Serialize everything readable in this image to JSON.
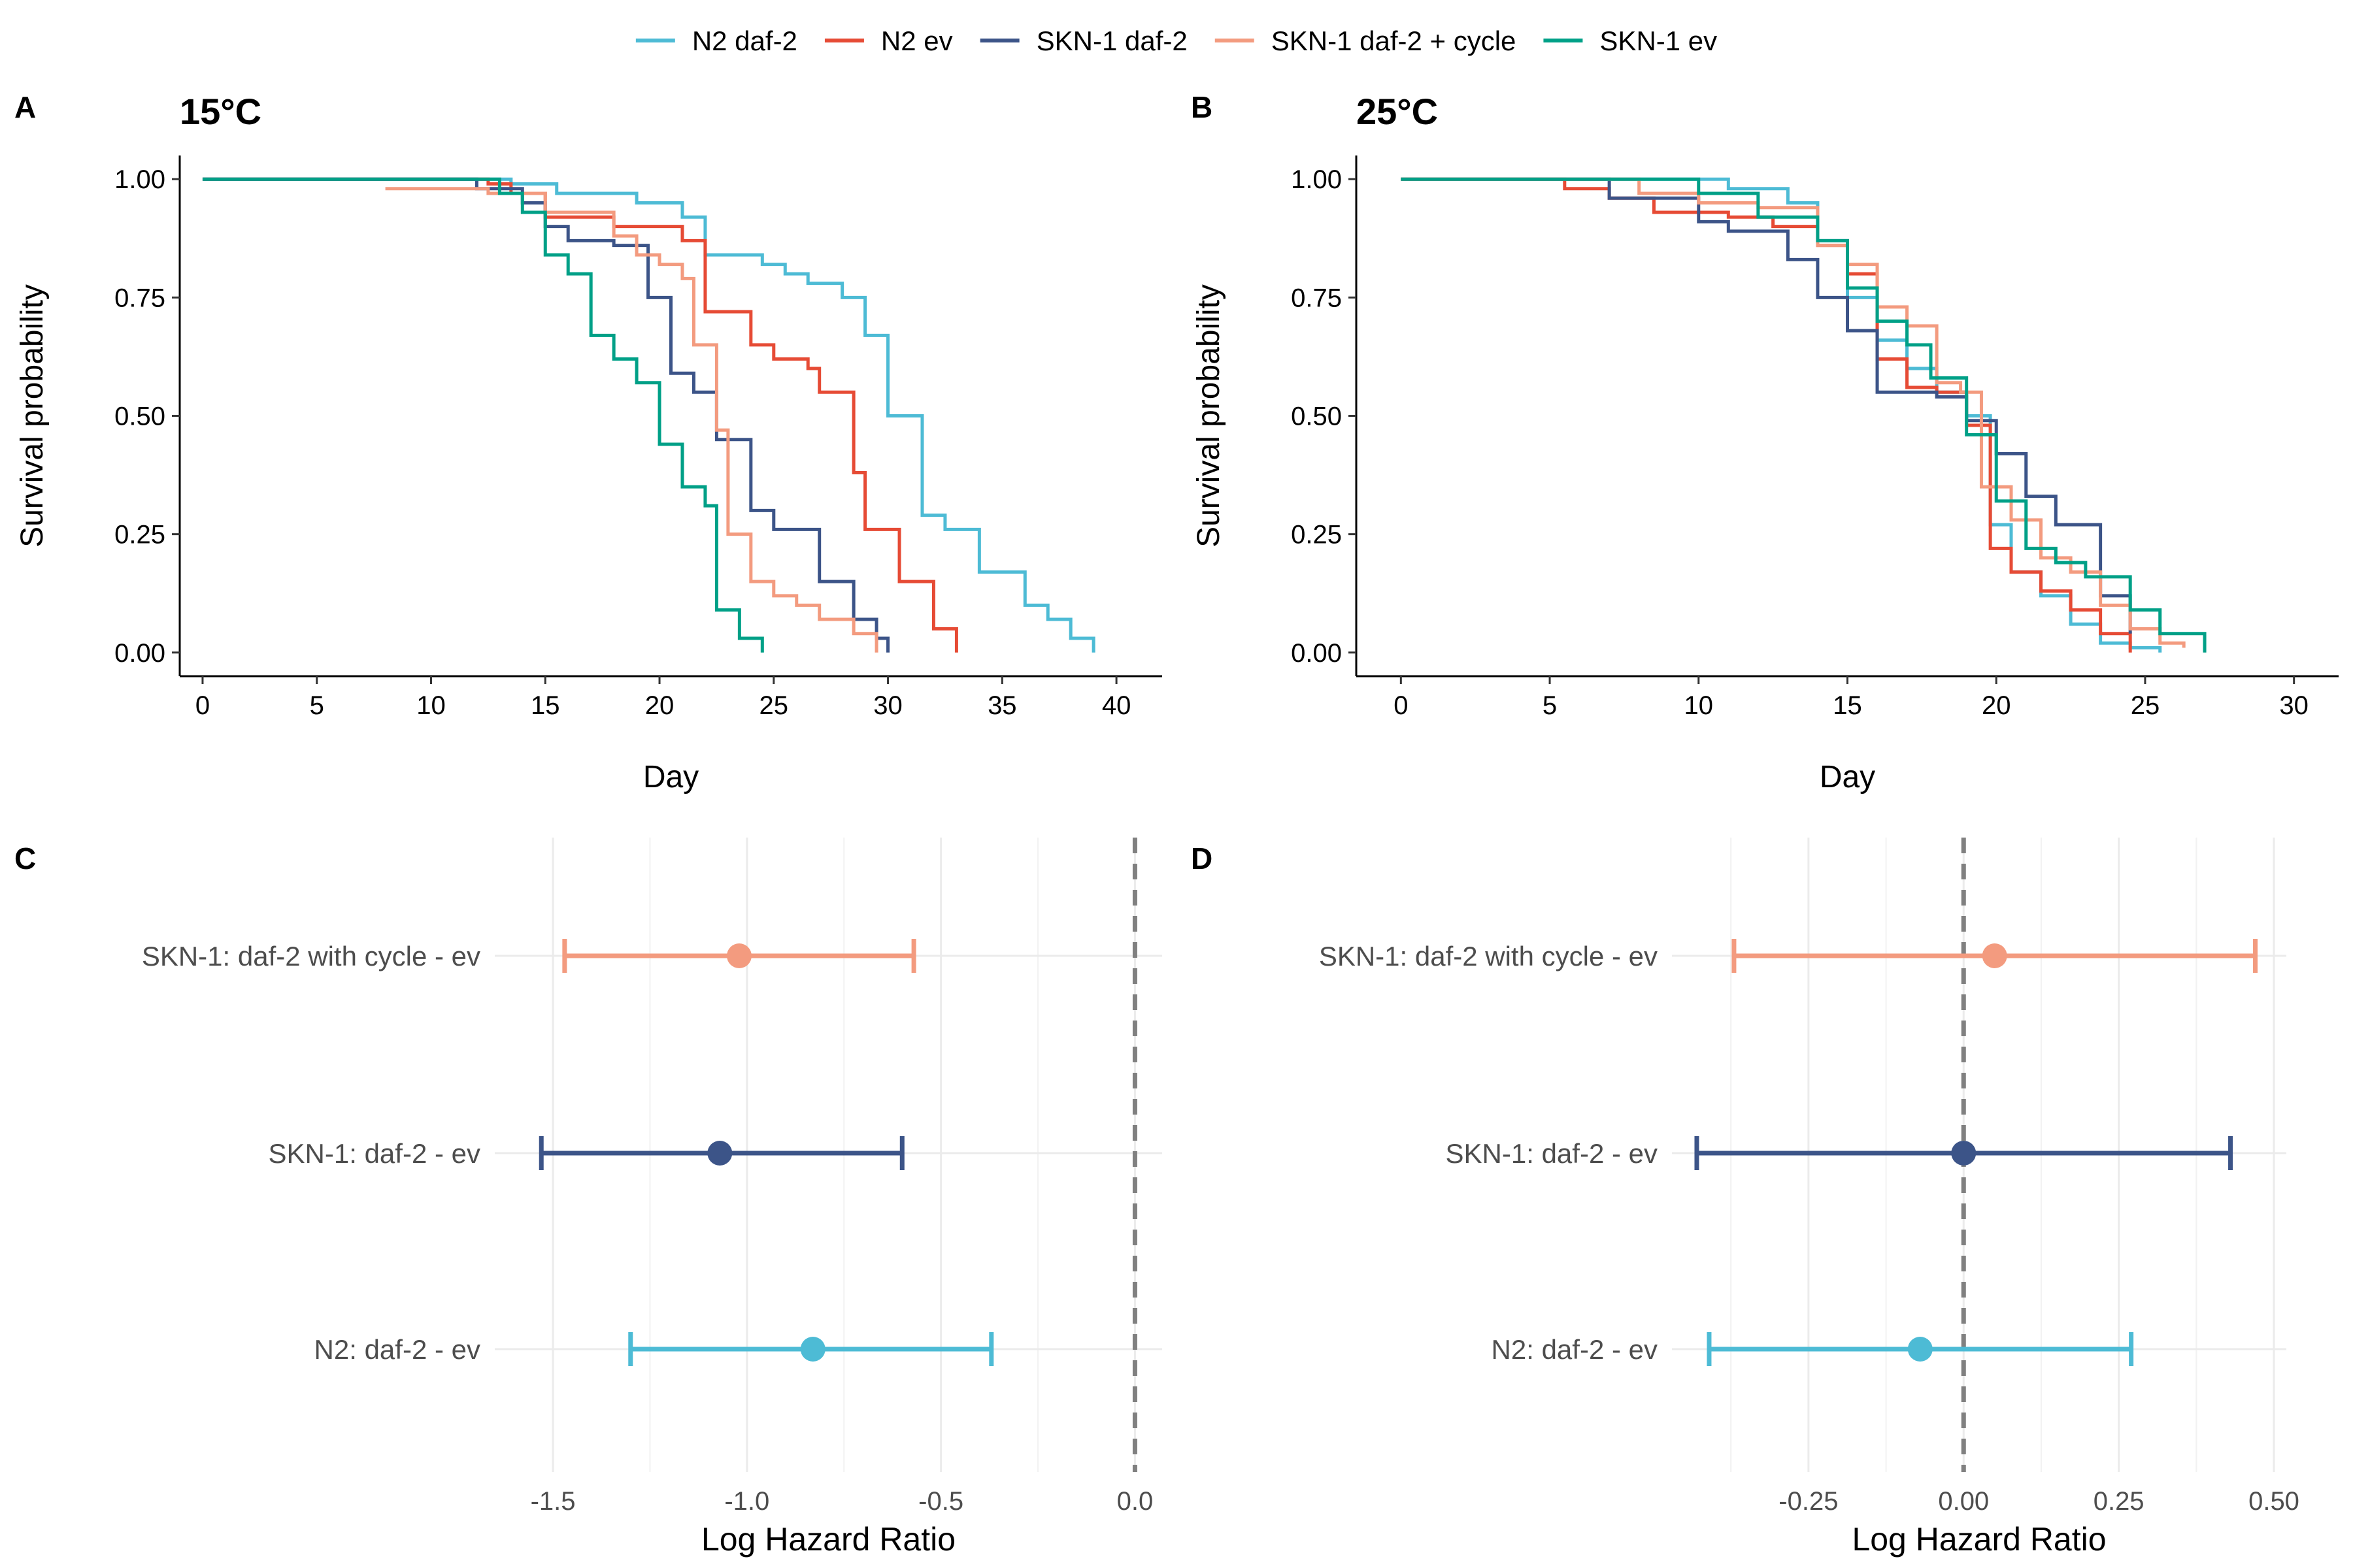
{
  "legend": {
    "items": [
      {
        "label": "N2 daf-2",
        "color": "#4DBBD5"
      },
      {
        "label": "N2 ev",
        "color": "#E64B35"
      },
      {
        "label": "SKN-1 daf-2",
        "color": "#3C5488"
      },
      {
        "label": "SKN-1 daf-2 + cycle",
        "color": "#F39B7F"
      },
      {
        "label": "SKN-1 ev",
        "color": "#00A087"
      }
    ]
  },
  "panels": {
    "A": {
      "letter": "A",
      "title": "15°C"
    },
    "B": {
      "letter": "B",
      "title": "25°C"
    },
    "C": {
      "letter": "C"
    },
    "D": {
      "letter": "D"
    }
  },
  "colors": {
    "n2_daf2": "#4DBBD5",
    "n2_ev": "#E64B35",
    "skn1_daf2": "#3C5488",
    "skn1_daf2_cycle": "#F39B7F",
    "skn1_ev": "#00A087",
    "reference_line": "#808080",
    "grid": "#EBEBEB"
  },
  "chart_data": [
    {
      "panel": "A",
      "type": "line",
      "title": "15°C",
      "xlabel": "Day",
      "ylabel": "Survival probability",
      "xlim": [
        -1,
        42
      ],
      "ylim": [
        -0.05,
        1.05
      ],
      "xticks": [
        0,
        5,
        10,
        15,
        20,
        25,
        30,
        35,
        40
      ],
      "xtick_labels": [
        "0",
        "5",
        "10",
        "15",
        "20",
        "25",
        "30",
        "35",
        "40"
      ],
      "yticks": [
        0,
        0.25,
        0.5,
        0.75,
        1
      ],
      "ytick_labels": [
        "0.00",
        "0.25",
        "0.50",
        "0.75",
        "1.00"
      ],
      "grid": false,
      "step": true,
      "series": [
        {
          "name": "N2 daf-2",
          "color": "#4DBBD5",
          "x": [
            0,
            13.5,
            15.5,
            19,
            21,
            22,
            24.5,
            25.5,
            26.5,
            28,
            29,
            30,
            31.5,
            32.5,
            34,
            36,
            37,
            38,
            39
          ],
          "y": [
            1,
            0.99,
            0.97,
            0.95,
            0.92,
            0.84,
            0.82,
            0.8,
            0.78,
            0.75,
            0.67,
            0.5,
            0.29,
            0.26,
            0.17,
            0.1,
            0.07,
            0.03,
            0
          ]
        },
        {
          "name": "N2 ev",
          "color": "#E64B35",
          "x": [
            0,
            12.5,
            13.5,
            15,
            18,
            21,
            22,
            24,
            25,
            26.5,
            27,
            28.5,
            29,
            30.5,
            32,
            33
          ],
          "y": [
            1,
            0.99,
            0.97,
            0.92,
            0.9,
            0.87,
            0.72,
            0.65,
            0.62,
            0.6,
            0.55,
            0.38,
            0.26,
            0.15,
            0.05,
            0
          ]
        },
        {
          "name": "SKN-1 daf-2",
          "color": "#3C5488",
          "x": [
            0,
            12,
            14,
            15,
            16,
            18,
            19.5,
            20.5,
            21.5,
            22.5,
            24,
            25,
            26,
            27,
            28.5,
            29.5,
            30
          ],
          "y": [
            1,
            0.98,
            0.95,
            0.9,
            0.87,
            0.86,
            0.75,
            0.59,
            0.55,
            0.45,
            0.3,
            0.26,
            0.26,
            0.15,
            0.07,
            0.03,
            0
          ]
        },
        {
          "name": "SKN-1 daf-2 + cycle",
          "color": "#F39B7F",
          "x": [
            8,
            12.5,
            15,
            18,
            19,
            20,
            21,
            21.5,
            22.5,
            23,
            24,
            25,
            26,
            27,
            28.5,
            29.5
          ],
          "y": [
            0.98,
            0.97,
            0.93,
            0.88,
            0.84,
            0.82,
            0.79,
            0.65,
            0.47,
            0.25,
            0.15,
            0.12,
            0.1,
            0.07,
            0.04,
            0
          ]
        },
        {
          "name": "SKN-1 ev",
          "color": "#00A087",
          "x": [
            0,
            13,
            14,
            15,
            16,
            17,
            18,
            19,
            20,
            21,
            22,
            22.5,
            23.5,
            24.5
          ],
          "y": [
            1,
            0.97,
            0.93,
            0.84,
            0.8,
            0.67,
            0.62,
            0.57,
            0.44,
            0.35,
            0.31,
            0.09,
            0.03,
            0
          ]
        }
      ]
    },
    {
      "panel": "B",
      "type": "line",
      "title": "25°C",
      "xlabel": "Day",
      "ylabel": "Survival probability",
      "xlim": [
        -1.5,
        31.5
      ],
      "ylim": [
        -0.05,
        1.05
      ],
      "xticks": [
        0,
        5,
        10,
        15,
        20,
        25,
        30
      ],
      "xtick_labels": [
        "0",
        "5",
        "10",
        "15",
        "20",
        "25",
        "30"
      ],
      "yticks": [
        0,
        0.25,
        0.5,
        0.75,
        1
      ],
      "ytick_labels": [
        "0.00",
        "0.25",
        "0.50",
        "0.75",
        "1.00"
      ],
      "grid": false,
      "step": true,
      "series": [
        {
          "name": "N2 daf-2",
          "color": "#4DBBD5",
          "x": [
            0,
            11,
            13,
            14,
            15,
            16,
            17,
            18,
            19,
            19.8,
            20.5,
            21.5,
            22.5,
            23.5,
            24.5,
            25.5
          ],
          "y": [
            1,
            0.98,
            0.95,
            0.87,
            0.75,
            0.66,
            0.6,
            0.55,
            0.5,
            0.27,
            0.17,
            0.12,
            0.06,
            0.02,
            0.01,
            0
          ]
        },
        {
          "name": "N2 ev",
          "color": "#E64B35",
          "x": [
            0,
            5.5,
            7,
            8.5,
            11,
            12.5,
            14,
            15,
            16,
            17,
            18,
            19,
            19.8,
            20.5,
            21.5,
            22.5,
            23.5,
            24.5
          ],
          "y": [
            1,
            0.98,
            0.96,
            0.93,
            0.92,
            0.9,
            0.86,
            0.8,
            0.62,
            0.56,
            0.55,
            0.48,
            0.22,
            0.17,
            0.13,
            0.09,
            0.04,
            0
          ]
        },
        {
          "name": "SKN-1 daf-2",
          "color": "#3C5488",
          "x": [
            0,
            7,
            10,
            11,
            13,
            14,
            15,
            16,
            17,
            18,
            19,
            20,
            21,
            22,
            23.5,
            24.5
          ],
          "y": [
            1,
            0.96,
            0.91,
            0.89,
            0.83,
            0.75,
            0.68,
            0.55,
            0.55,
            0.54,
            0.49,
            0.42,
            0.33,
            0.27,
            0.12,
            0.04
          ]
        },
        {
          "name": "SKN-1 daf-2 + cycle",
          "color": "#F39B7F",
          "x": [
            0,
            8,
            10,
            12,
            14,
            15,
            16,
            17,
            18,
            18.8,
            19.5,
            20.5,
            21.5,
            22.5,
            23.5,
            24.5,
            25.5,
            26.3
          ],
          "y": [
            1,
            0.97,
            0.95,
            0.94,
            0.86,
            0.82,
            0.73,
            0.69,
            0.57,
            0.55,
            0.35,
            0.28,
            0.2,
            0.17,
            0.1,
            0.05,
            0.02,
            0.01
          ]
        },
        {
          "name": "SKN-1 ev",
          "color": "#00A087",
          "x": [
            0,
            10,
            12,
            14,
            15,
            16,
            17,
            17.8,
            19,
            20,
            21,
            22,
            23,
            24.5,
            25.5,
            27
          ],
          "y": [
            1,
            0.97,
            0.92,
            0.87,
            0.77,
            0.7,
            0.65,
            0.58,
            0.46,
            0.32,
            0.22,
            0.19,
            0.16,
            0.09,
            0.04,
            0
          ]
        }
      ]
    },
    {
      "panel": "C",
      "type": "scatter",
      "xlabel": "Log Hazard Ratio",
      "ylabel": "",
      "xlim": [
        -1.65,
        0.07
      ],
      "xticks": [
        -1.5,
        -1.0,
        -0.5,
        0.0
      ],
      "xtick_labels": [
        "-1.5",
        "-1.0",
        "-0.5",
        "0.0"
      ],
      "grid": true,
      "reference_line": 0,
      "categories": [
        "SKN-1: daf-2 with cycle - ev",
        "SKN-1: daf-2 - ev",
        "N2: daf-2 - ev"
      ],
      "estimates": [
        {
          "label": "SKN-1: daf-2 with cycle - ev",
          "estimate": -1.02,
          "lower": -1.47,
          "upper": -0.57,
          "color": "#F39B7F"
        },
        {
          "label": "SKN-1: daf-2 - ev",
          "estimate": -1.07,
          "lower": -1.53,
          "upper": -0.6,
          "color": "#3C5488"
        },
        {
          "label": "N2: daf-2 - ev",
          "estimate": -0.83,
          "lower": -1.3,
          "upper": -0.37,
          "color": "#4DBBD5"
        }
      ]
    },
    {
      "panel": "D",
      "type": "scatter",
      "xlabel": "Log Hazard Ratio",
      "ylabel": "",
      "xlim": [
        -0.47,
        0.52
      ],
      "xticks": [
        -0.25,
        0.0,
        0.25,
        0.5
      ],
      "xtick_labels": [
        "-0.25",
        "0.00",
        "0.25",
        "0.50"
      ],
      "grid": true,
      "reference_line": 0,
      "categories": [
        "SKN-1: daf-2 with cycle - ev",
        "SKN-1: daf-2 - ev",
        "N2: daf-2 - ev"
      ],
      "estimates": [
        {
          "label": "SKN-1: daf-2 with cycle - ev",
          "estimate": 0.05,
          "lower": -0.37,
          "upper": 0.47,
          "color": "#F39B7F"
        },
        {
          "label": "SKN-1: daf-2 - ev",
          "estimate": 0.0,
          "lower": -0.43,
          "upper": 0.43,
          "color": "#3C5488"
        },
        {
          "label": "N2: daf-2 - ev",
          "estimate": -0.07,
          "lower": -0.41,
          "upper": 0.27,
          "color": "#4DBBD5"
        }
      ]
    }
  ]
}
